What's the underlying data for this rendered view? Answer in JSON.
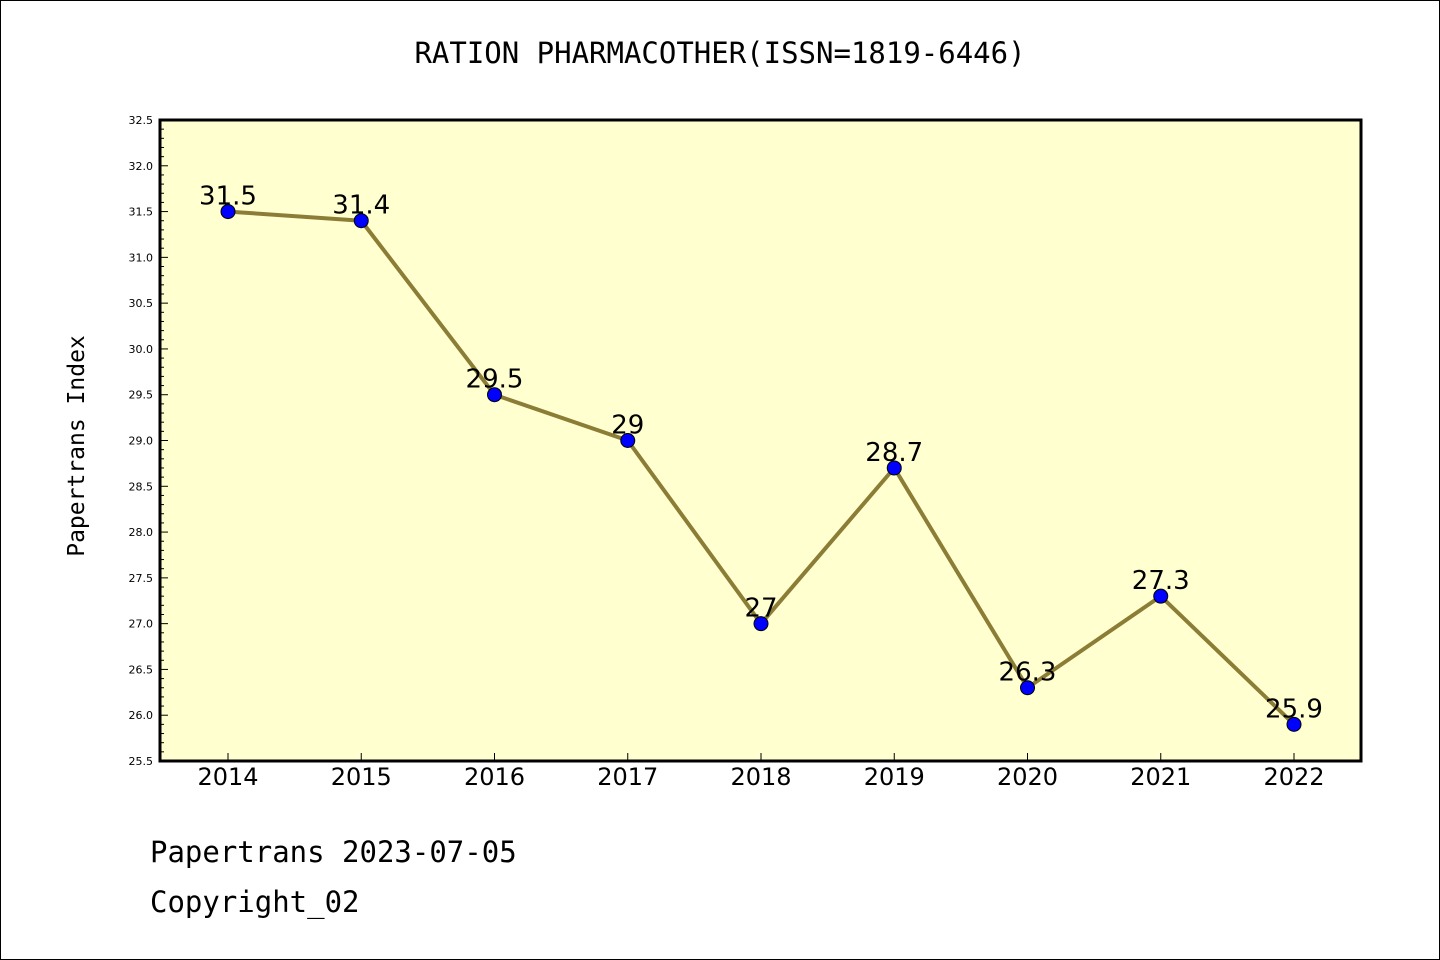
{
  "chart_data": {
    "type": "line",
    "title": "RATION PHARMACOTHER(ISSN=1819-6446)",
    "xlabel": "",
    "ylabel": "Papertrans Index",
    "categories": [
      "2014",
      "2015",
      "2016",
      "2017",
      "2018",
      "2019",
      "2020",
      "2021",
      "2022"
    ],
    "series": [
      {
        "values": [
          31.5,
          31.4,
          29.5,
          29,
          27,
          28.7,
          26.3,
          27.3,
          25.9
        ],
        "labels": [
          "31.5",
          "31.4",
          "29.5",
          "29",
          "27",
          "28.7",
          "26.3",
          "27.3",
          "25.9"
        ]
      }
    ],
    "ylim": [
      25.5,
      32.5
    ],
    "yticks": [
      "25.5",
      "26.0",
      "26.5",
      "27.0",
      "27.5",
      "28.0",
      "28.5",
      "29.0",
      "29.5",
      "30.0",
      "30.5",
      "31.0",
      "31.5",
      "32.0",
      "32.5"
    ],
    "grid": false,
    "legend": "none",
    "colors": {
      "plot_bg": "#ffffd0",
      "line": "#8b7d35",
      "marker": "#0000ff"
    }
  },
  "footer": {
    "line1": "Papertrans 2023-07-05",
    "line2": "Copyright_02"
  }
}
